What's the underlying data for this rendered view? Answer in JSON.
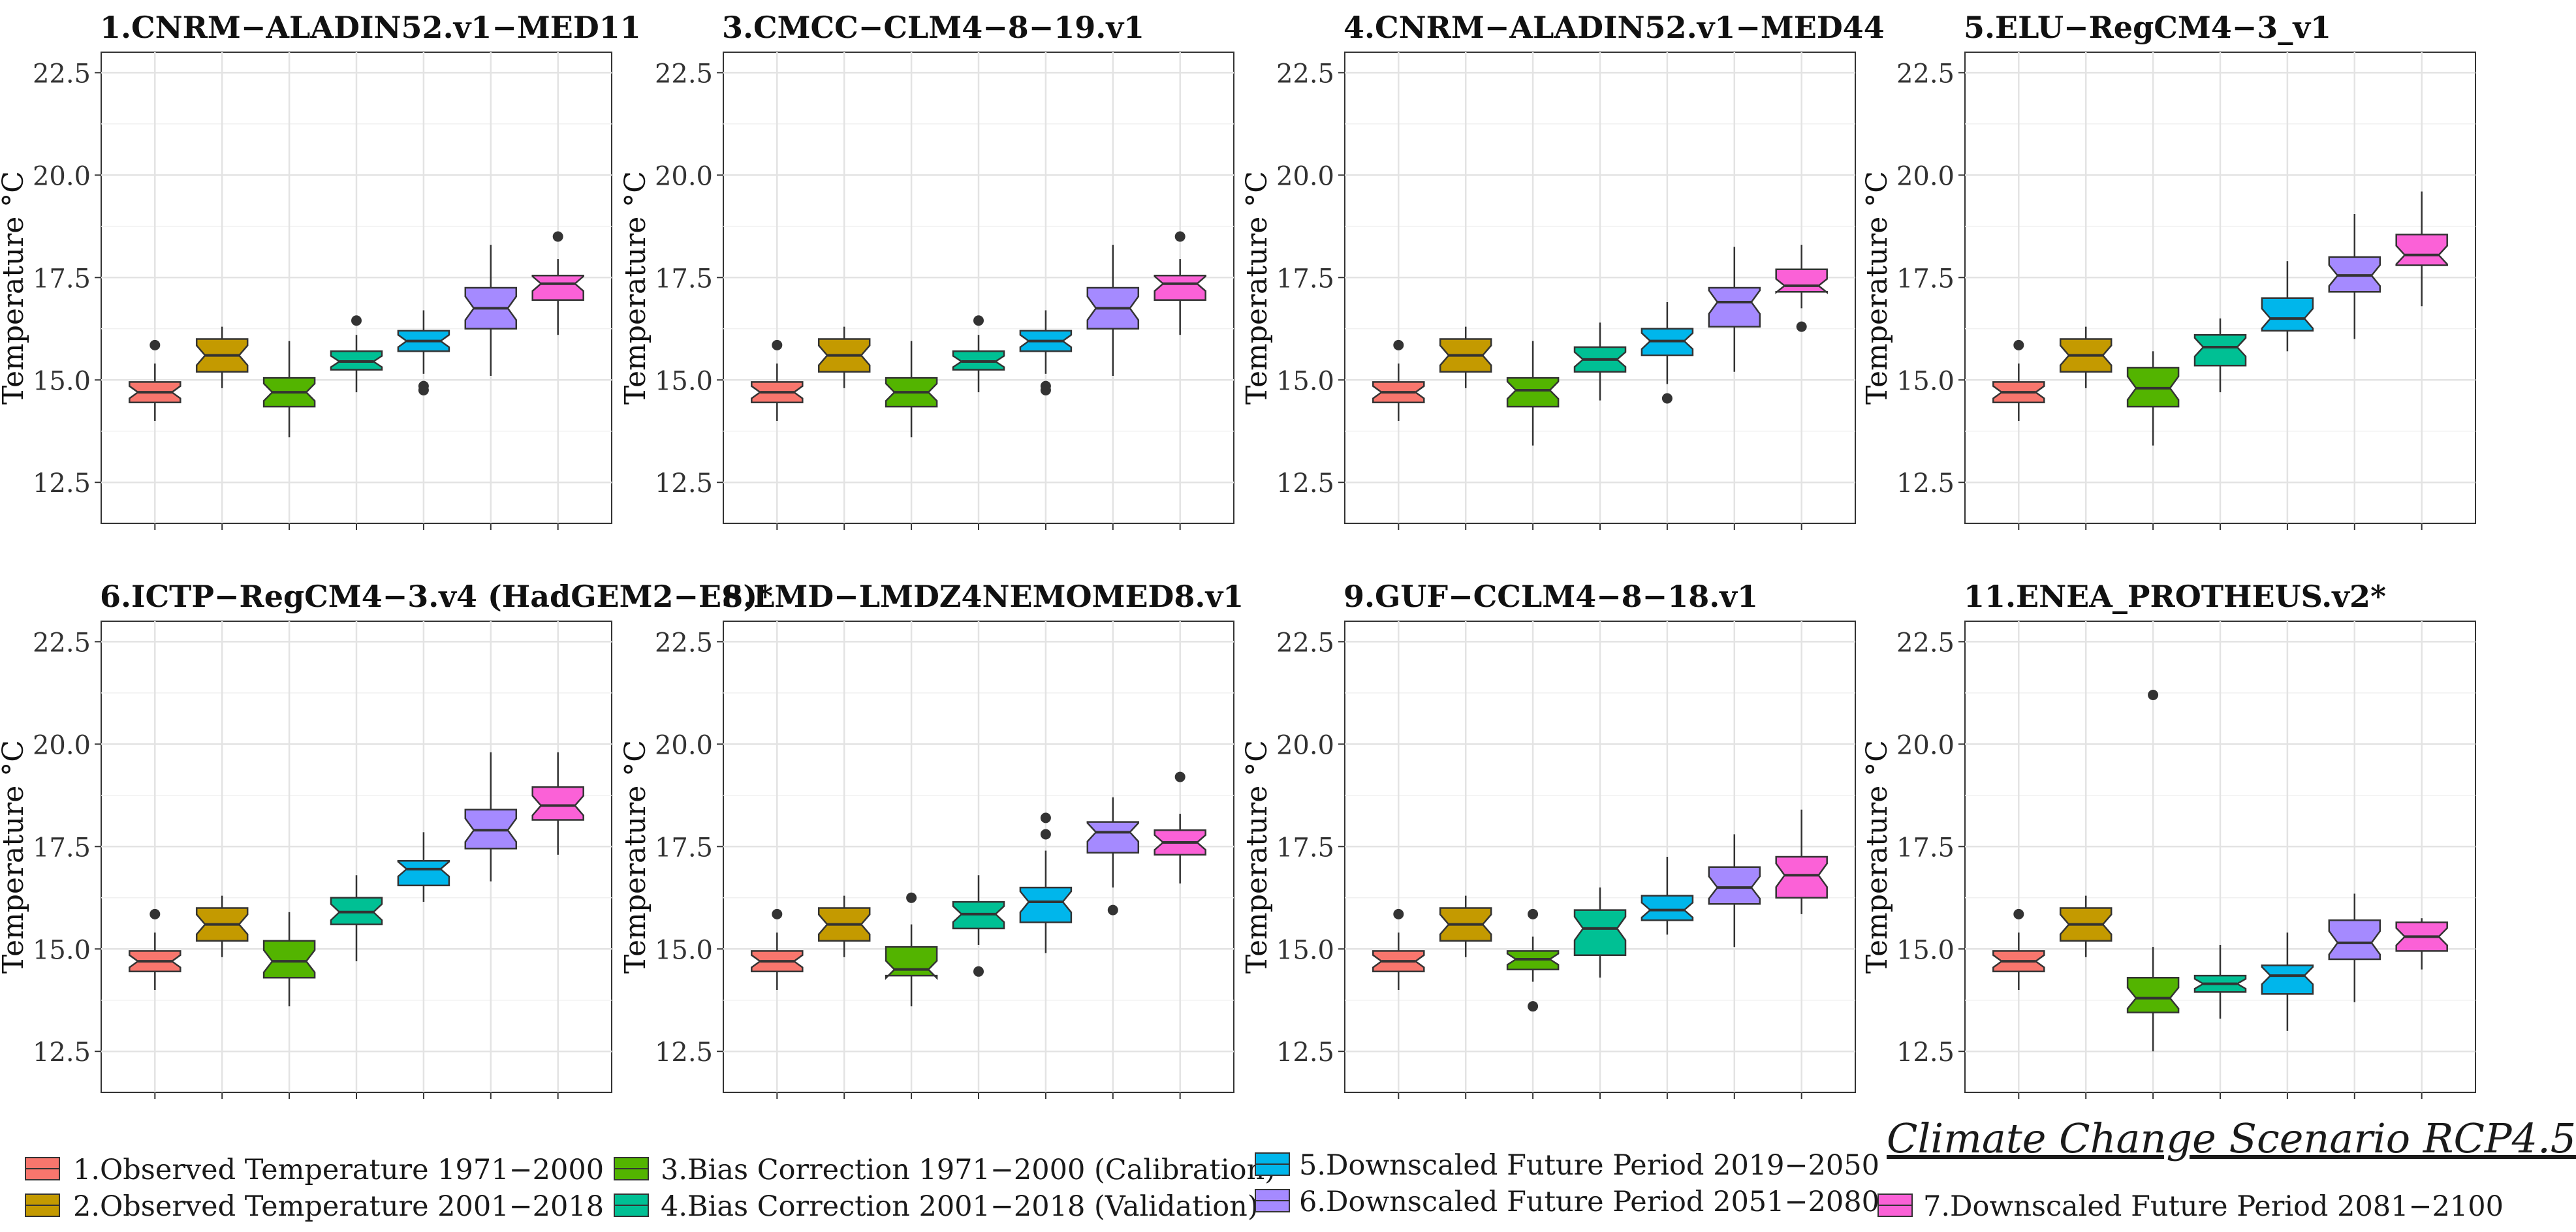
{
  "figure": {
    "scenario_title": "Climate Change Scenario RCP4.5"
  },
  "legend": [
    {
      "label": "1.Observed Temperature 1971−2000",
      "color": "#f8766d"
    },
    {
      "label": "2.Observed Temperature 2001−2018",
      "color": "#c49a00"
    },
    {
      "label": "3.Bias Correction 1971−2000 (Calibration)",
      "color": "#53b400"
    },
    {
      "label": "4.Bias Correction 2001−2018 (Validation)",
      "color": "#00c094"
    },
    {
      "label": "5.Downscaled Future Period 2019−2050",
      "color": "#00b6eb"
    },
    {
      "label": "6.Downscaled Future Period 2051−2080",
      "color": "#a58aff"
    },
    {
      "label": "7.Downscaled Future Period 2081−2100",
      "color": "#fb61d7"
    }
  ],
  "chart_data": [
    {
      "type": "boxplot",
      "title": "1.CNRM−ALADIN52.v1−MED11",
      "ylabel": "Temperature °C",
      "ylim": [
        11.5,
        23.0
      ],
      "yticks": [
        12.5,
        15.0,
        17.5,
        20.0,
        22.5
      ],
      "ytick_labels": [
        "12.5",
        "15.0",
        "17.5",
        "20.0",
        "22.5"
      ],
      "boxes": [
        {
          "min": 14.0,
          "q1": 14.45,
          "median": 14.7,
          "q3": 14.95,
          "max": 15.4,
          "outliers": [
            15.85
          ]
        },
        {
          "min": 14.8,
          "q1": 15.2,
          "median": 15.6,
          "q3": 16.0,
          "max": 16.3,
          "outliers": []
        },
        {
          "min": 13.6,
          "q1": 14.35,
          "median": 14.7,
          "q3": 15.05,
          "max": 15.95,
          "outliers": []
        },
        {
          "min": 14.7,
          "q1": 15.25,
          "median": 15.45,
          "q3": 15.7,
          "max": 16.1,
          "outliers": [
            16.45
          ]
        },
        {
          "min": 15.15,
          "q1": 15.7,
          "median": 15.95,
          "q3": 16.2,
          "max": 16.7,
          "outliers": [
            14.85,
            14.75
          ]
        },
        {
          "min": 15.1,
          "q1": 16.25,
          "median": 16.75,
          "q3": 17.25,
          "max": 18.3,
          "outliers": []
        },
        {
          "min": 16.1,
          "q1": 16.95,
          "median": 17.35,
          "q3": 17.55,
          "max": 17.95,
          "outliers": [
            18.5
          ]
        }
      ]
    },
    {
      "type": "boxplot",
      "title": "3.CMCC−CLM4−8−19.v1",
      "ylabel": "Temperature °C",
      "ylim": [
        11.5,
        23.0
      ],
      "yticks": [
        12.5,
        15.0,
        17.5,
        20.0,
        22.5
      ],
      "ytick_labels": [
        "12.5",
        "15.0",
        "17.5",
        "20.0",
        "22.5"
      ],
      "boxes": [
        {
          "min": 14.0,
          "q1": 14.45,
          "median": 14.7,
          "q3": 14.95,
          "max": 15.4,
          "outliers": [
            15.85
          ]
        },
        {
          "min": 14.8,
          "q1": 15.2,
          "median": 15.6,
          "q3": 16.0,
          "max": 16.3,
          "outliers": []
        },
        {
          "min": 13.6,
          "q1": 14.35,
          "median": 14.7,
          "q3": 15.05,
          "max": 15.95,
          "outliers": []
        },
        {
          "min": 14.7,
          "q1": 15.25,
          "median": 15.45,
          "q3": 15.7,
          "max": 16.1,
          "outliers": [
            16.45
          ]
        },
        {
          "min": 15.15,
          "q1": 15.7,
          "median": 15.95,
          "q3": 16.2,
          "max": 16.7,
          "outliers": [
            14.85,
            14.75
          ]
        },
        {
          "min": 15.1,
          "q1": 16.25,
          "median": 16.75,
          "q3": 17.25,
          "max": 18.3,
          "outliers": []
        },
        {
          "min": 16.1,
          "q1": 16.95,
          "median": 17.35,
          "q3": 17.55,
          "max": 17.95,
          "outliers": [
            18.5
          ]
        }
      ]
    },
    {
      "type": "boxplot",
      "title": "4.CNRM−ALADIN52.v1−MED44",
      "ylabel": "Temperature °C",
      "ylim": [
        11.5,
        23.0
      ],
      "yticks": [
        12.5,
        15.0,
        17.5,
        20.0,
        22.5
      ],
      "ytick_labels": [
        "12.5",
        "15.0",
        "17.5",
        "20.0",
        "22.5"
      ],
      "boxes": [
        {
          "min": 14.0,
          "q1": 14.45,
          "median": 14.7,
          "q3": 14.95,
          "max": 15.4,
          "outliers": [
            15.85
          ]
        },
        {
          "min": 14.8,
          "q1": 15.2,
          "median": 15.6,
          "q3": 16.0,
          "max": 16.3,
          "outliers": []
        },
        {
          "min": 13.4,
          "q1": 14.35,
          "median": 14.75,
          "q3": 15.05,
          "max": 15.95,
          "outliers": []
        },
        {
          "min": 14.5,
          "q1": 15.2,
          "median": 15.5,
          "q3": 15.8,
          "max": 16.4,
          "outliers": []
        },
        {
          "min": 14.9,
          "q1": 15.6,
          "median": 15.95,
          "q3": 16.25,
          "max": 16.9,
          "outliers": [
            14.55
          ]
        },
        {
          "min": 15.2,
          "q1": 16.3,
          "median": 16.9,
          "q3": 17.25,
          "max": 18.25,
          "outliers": []
        },
        {
          "min": 16.75,
          "q1": 17.15,
          "median": 17.3,
          "q3": 17.7,
          "max": 18.3,
          "outliers": [
            16.3
          ]
        }
      ]
    },
    {
      "type": "boxplot",
      "title": "5.ELU−RegCM4−3_v1",
      "ylabel": "Temperature °C",
      "ylim": [
        11.5,
        23.0
      ],
      "yticks": [
        12.5,
        15.0,
        17.5,
        20.0,
        22.5
      ],
      "ytick_labels": [
        "12.5",
        "15.0",
        "17.5",
        "20.0",
        "22.5"
      ],
      "boxes": [
        {
          "min": 14.0,
          "q1": 14.45,
          "median": 14.7,
          "q3": 14.95,
          "max": 15.4,
          "outliers": [
            15.85
          ]
        },
        {
          "min": 14.8,
          "q1": 15.2,
          "median": 15.6,
          "q3": 16.0,
          "max": 16.3,
          "outliers": []
        },
        {
          "min": 13.4,
          "q1": 14.35,
          "median": 14.8,
          "q3": 15.3,
          "max": 15.7,
          "outliers": []
        },
        {
          "min": 14.7,
          "q1": 15.35,
          "median": 15.8,
          "q3": 16.1,
          "max": 16.5,
          "outliers": []
        },
        {
          "min": 15.7,
          "q1": 16.2,
          "median": 16.5,
          "q3": 17.0,
          "max": 17.9,
          "outliers": []
        },
        {
          "min": 16.0,
          "q1": 17.15,
          "median": 17.55,
          "q3": 18.0,
          "max": 19.05,
          "outliers": []
        },
        {
          "min": 16.8,
          "q1": 17.8,
          "median": 18.05,
          "q3": 18.55,
          "max": 19.6,
          "outliers": []
        }
      ]
    },
    {
      "type": "boxplot",
      "title": "6.ICTP−RegCM4−3.v4 (HadGEM2−ES)*",
      "ylabel": "Temperature °C",
      "ylim": [
        11.5,
        23.0
      ],
      "yticks": [
        12.5,
        15.0,
        17.5,
        20.0,
        22.5
      ],
      "ytick_labels": [
        "12.5",
        "15.0",
        "17.5",
        "20.0",
        "22.5"
      ],
      "boxes": [
        {
          "min": 14.0,
          "q1": 14.45,
          "median": 14.7,
          "q3": 14.95,
          "max": 15.4,
          "outliers": [
            15.85
          ]
        },
        {
          "min": 14.8,
          "q1": 15.2,
          "median": 15.6,
          "q3": 16.0,
          "max": 16.3,
          "outliers": []
        },
        {
          "min": 13.6,
          "q1": 14.3,
          "median": 14.7,
          "q3": 15.2,
          "max": 15.9,
          "outliers": []
        },
        {
          "min": 14.7,
          "q1": 15.6,
          "median": 15.9,
          "q3": 16.25,
          "max": 16.8,
          "outliers": []
        },
        {
          "min": 16.15,
          "q1": 16.55,
          "median": 16.95,
          "q3": 17.15,
          "max": 17.85,
          "outliers": []
        },
        {
          "min": 16.65,
          "q1": 17.45,
          "median": 17.9,
          "q3": 18.4,
          "max": 19.8,
          "outliers": []
        },
        {
          "min": 17.3,
          "q1": 18.15,
          "median": 18.5,
          "q3": 18.95,
          "max": 19.8,
          "outliers": []
        }
      ]
    },
    {
      "type": "boxplot",
      "title": "8.LMD−LMDZ4NEMOMED8.v1",
      "ylabel": "Temperature °C",
      "ylim": [
        11.5,
        23.0
      ],
      "yticks": [
        12.5,
        15.0,
        17.5,
        20.0,
        22.5
      ],
      "ytick_labels": [
        "12.5",
        "15.0",
        "17.5",
        "20.0",
        "22.5"
      ],
      "boxes": [
        {
          "min": 14.0,
          "q1": 14.45,
          "median": 14.7,
          "q3": 14.95,
          "max": 15.4,
          "outliers": [
            15.85
          ]
        },
        {
          "min": 14.8,
          "q1": 15.2,
          "median": 15.6,
          "q3": 16.0,
          "max": 16.3,
          "outliers": []
        },
        {
          "min": 13.6,
          "q1": 14.35,
          "median": 14.5,
          "q3": 15.05,
          "max": 15.6,
          "outliers": [
            16.25
          ]
        },
        {
          "min": 15.1,
          "q1": 15.5,
          "median": 15.85,
          "q3": 16.15,
          "max": 16.8,
          "outliers": [
            14.45
          ]
        },
        {
          "min": 14.9,
          "q1": 15.65,
          "median": 16.15,
          "q3": 16.5,
          "max": 17.4,
          "outliers": [
            17.8,
            18.2
          ]
        },
        {
          "min": 16.5,
          "q1": 17.35,
          "median": 17.85,
          "q3": 18.1,
          "max": 18.7,
          "outliers": [
            15.95
          ]
        },
        {
          "min": 16.6,
          "q1": 17.3,
          "median": 17.6,
          "q3": 17.9,
          "max": 18.3,
          "outliers": [
            19.2
          ]
        }
      ]
    },
    {
      "type": "boxplot",
      "title": "9.GUF−CCLM4−8−18.v1",
      "ylabel": "Temperature °C",
      "ylim": [
        11.5,
        23.0
      ],
      "yticks": [
        12.5,
        15.0,
        17.5,
        20.0,
        22.5
      ],
      "ytick_labels": [
        "12.5",
        "15.0",
        "17.5",
        "20.0",
        "22.5"
      ],
      "boxes": [
        {
          "min": 14.0,
          "q1": 14.45,
          "median": 14.7,
          "q3": 14.95,
          "max": 15.4,
          "outliers": [
            15.85
          ]
        },
        {
          "min": 14.8,
          "q1": 15.2,
          "median": 15.6,
          "q3": 16.0,
          "max": 16.3,
          "outliers": []
        },
        {
          "min": 14.2,
          "q1": 14.5,
          "median": 14.75,
          "q3": 14.95,
          "max": 15.3,
          "outliers": [
            15.85,
            13.6
          ]
        },
        {
          "min": 14.3,
          "q1": 14.85,
          "median": 15.5,
          "q3": 15.95,
          "max": 16.5,
          "outliers": []
        },
        {
          "min": 15.35,
          "q1": 15.7,
          "median": 15.95,
          "q3": 16.3,
          "max": 17.25,
          "outliers": []
        },
        {
          "min": 15.05,
          "q1": 16.1,
          "median": 16.5,
          "q3": 17.0,
          "max": 17.8,
          "outliers": []
        },
        {
          "min": 15.85,
          "q1": 16.25,
          "median": 16.8,
          "q3": 17.25,
          "max": 18.4,
          "outliers": []
        }
      ]
    },
    {
      "type": "boxplot",
      "title": "11.ENEA_PROTHEUS.v2*",
      "ylabel": "Temperature °C",
      "ylim": [
        11.5,
        23.0
      ],
      "yticks": [
        12.5,
        15.0,
        17.5,
        20.0,
        22.5
      ],
      "ytick_labels": [
        "12.5",
        "15.0",
        "17.5",
        "20.0",
        "22.5"
      ],
      "boxes": [
        {
          "min": 14.0,
          "q1": 14.45,
          "median": 14.7,
          "q3": 14.95,
          "max": 15.4,
          "outliers": [
            15.85
          ]
        },
        {
          "min": 14.8,
          "q1": 15.2,
          "median": 15.6,
          "q3": 16.0,
          "max": 16.3,
          "outliers": []
        },
        {
          "min": 12.5,
          "q1": 13.45,
          "median": 13.8,
          "q3": 14.3,
          "max": 15.05,
          "outliers": [
            21.2
          ]
        },
        {
          "min": 13.3,
          "q1": 13.95,
          "median": 14.15,
          "q3": 14.35,
          "max": 15.1,
          "outliers": []
        },
        {
          "min": 13.0,
          "q1": 13.9,
          "median": 14.35,
          "q3": 14.6,
          "max": 15.4,
          "outliers": []
        },
        {
          "min": 13.7,
          "q1": 14.75,
          "median": 15.15,
          "q3": 15.7,
          "max": 16.35,
          "outliers": []
        },
        {
          "min": 14.5,
          "q1": 14.95,
          "median": 15.3,
          "q3": 15.65,
          "max": 15.75,
          "outliers": []
        }
      ]
    }
  ]
}
